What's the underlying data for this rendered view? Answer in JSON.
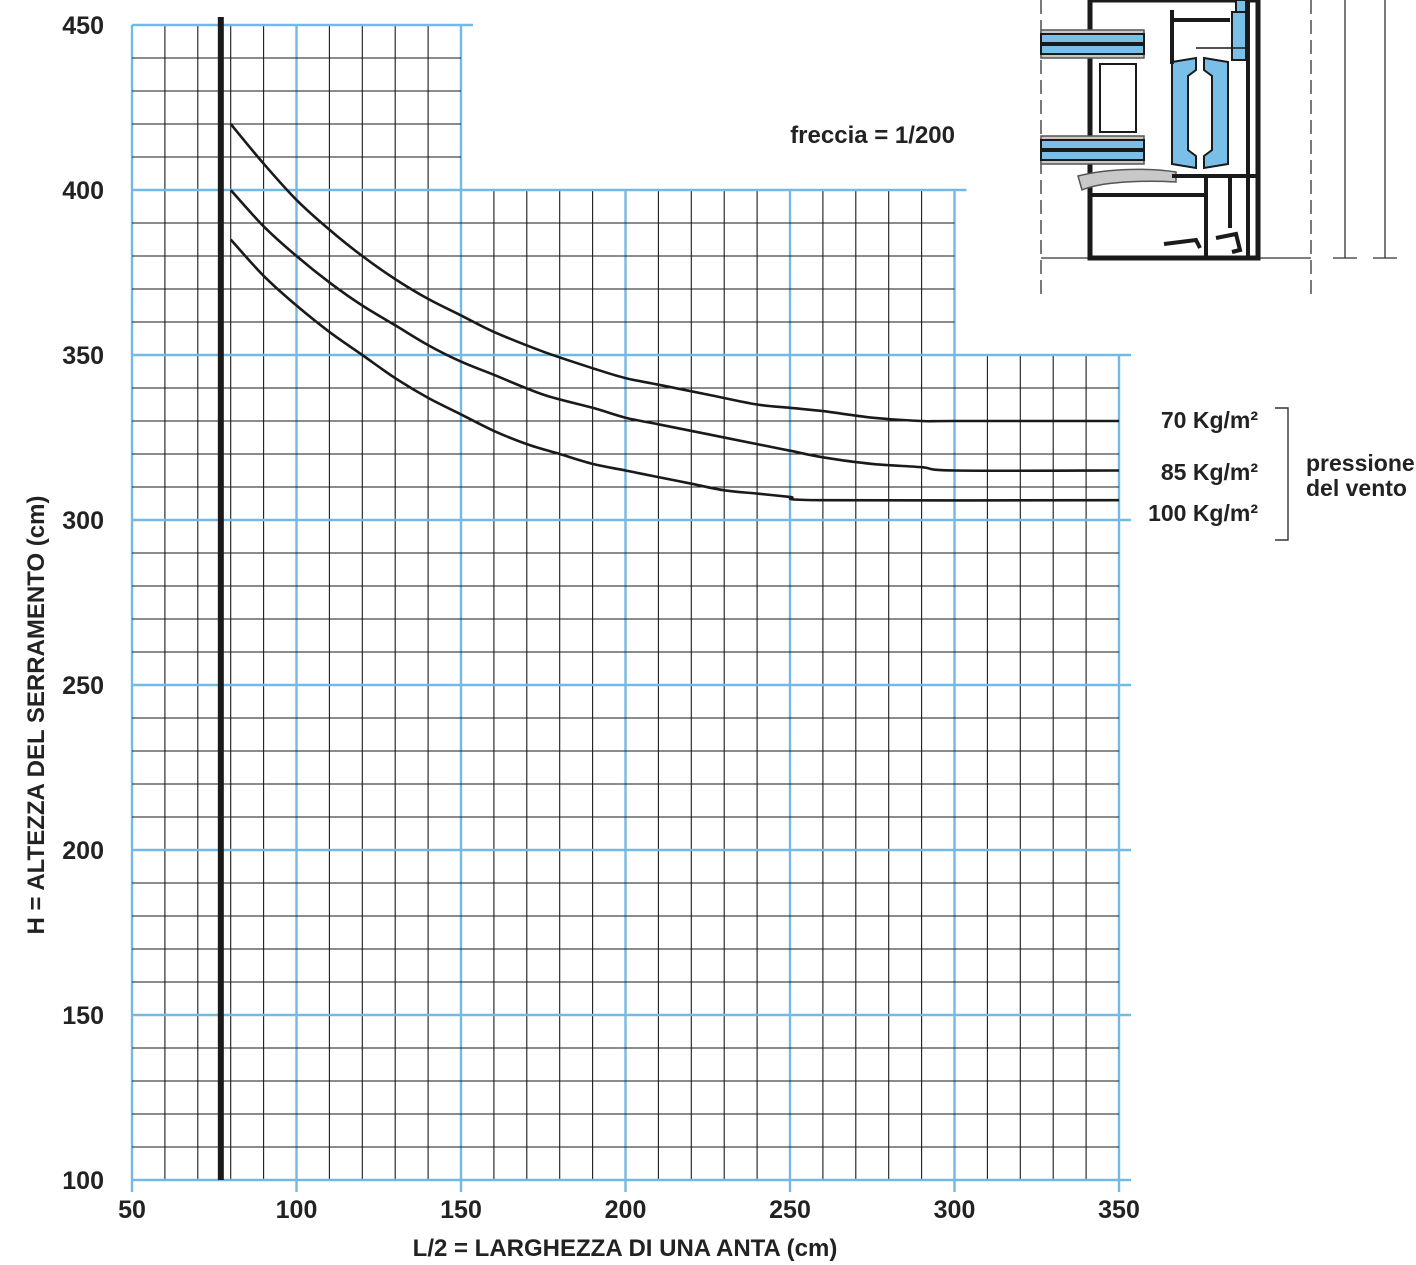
{
  "chart_data": {
    "type": "line",
    "title": "",
    "annotation": "freccia = 1/200",
    "xlabel": "L/2  =  LARGHEZZA DI UNA ANTA  (cm)",
    "ylabel": "H  =  ALTEZZA  DEL  SERRAMENTO  (cm)",
    "xlim": [
      50,
      350
    ],
    "ylim": [
      100,
      450
    ],
    "x_ticks": [
      "50",
      "100",
      "150",
      "200",
      "250",
      "300",
      "350"
    ],
    "y_ticks": [
      "100",
      "150",
      "200",
      "250",
      "300",
      "350",
      "400",
      "450"
    ],
    "grid": true,
    "grid_outline": [
      [
        50,
        100
      ],
      [
        50,
        450
      ],
      [
        150,
        450
      ],
      [
        150,
        400
      ],
      [
        300,
        400
      ],
      [
        300,
        350
      ],
      [
        350,
        350
      ],
      [
        350,
        100
      ]
    ],
    "min_width_line_x": 77,
    "legend_group_label": [
      "pressione",
      "del vento"
    ],
    "legend_position": "right",
    "series": [
      {
        "name": "70 Kg/m²",
        "x": [
          80,
          90,
          100,
          110,
          120,
          130,
          140,
          150,
          160,
          175,
          190,
          200,
          210,
          225,
          240,
          250,
          260,
          275,
          290,
          300,
          350
        ],
        "y": [
          420,
          408,
          397,
          388,
          380,
          373,
          367,
          362,
          357,
          351,
          346,
          343,
          341,
          338,
          335,
          334,
          333,
          331,
          330,
          330,
          330
        ]
      },
      {
        "name": "85 Kg/m²",
        "x": [
          80,
          90,
          100,
          110,
          120,
          130,
          140,
          150,
          160,
          175,
          190,
          200,
          210,
          225,
          240,
          250,
          260,
          275,
          290,
          300,
          350
        ],
        "y": [
          400,
          389,
          380,
          372,
          365,
          359,
          353,
          348,
          344,
          338,
          334,
          331,
          329,
          326,
          323,
          321,
          319,
          317,
          316,
          315,
          315
        ]
      },
      {
        "name": "100 Kg/m²",
        "x": [
          80,
          90,
          100,
          110,
          120,
          130,
          140,
          150,
          160,
          170,
          180,
          190,
          200,
          210,
          220,
          230,
          240,
          250,
          260,
          350
        ],
        "y": [
          385,
          374,
          365,
          357,
          350,
          343,
          337,
          332,
          327,
          323,
          320,
          317,
          315,
          313,
          311,
          309,
          308,
          307,
          306,
          306
        ]
      }
    ]
  },
  "colors": {
    "minor_grid": "#1a1a1a",
    "major_grid": "#74b9e4",
    "curves": "#1a1a1a",
    "text": "#222222",
    "profile_blue": "#79bfe8"
  }
}
